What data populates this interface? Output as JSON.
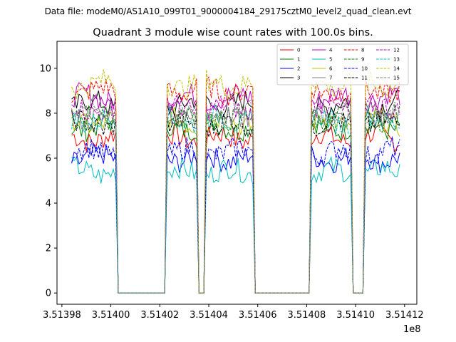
{
  "chart_data": {
    "type": "line",
    "suptitle": "Data file: modeM0/AS1A10_099T01_9000004184_29175cztM0_level2_quad_clean.evt",
    "title": "Quadrant 3 module wise count rates with 100.0s bins.",
    "xlabel": "",
    "ylabel": "",
    "x_offset_label": "1e8",
    "xlim": [
      3.513978,
      3.514125
    ],
    "ylim": [
      -0.5,
      11.2
    ],
    "x_ticks": [
      3.51398,
      3.514,
      3.51402,
      3.51404,
      3.51406,
      3.51408,
      3.5141,
      3.51412
    ],
    "x_tick_labels": [
      "3.51398",
      "3.51400",
      "3.51402",
      "3.51404",
      "3.51406",
      "3.51408",
      "3.51410",
      "3.51412"
    ],
    "y_ticks": [
      0,
      2,
      4,
      6,
      8,
      10
    ],
    "y_tick_labels": [
      "0",
      "2",
      "4",
      "6",
      "8",
      "10"
    ],
    "segments": [
      {
        "start": 3.513984,
        "end": 3.514002
      },
      {
        "start": 3.514023,
        "end": 3.514035
      },
      {
        "start": 3.514039,
        "end": 3.514058
      },
      {
        "start": 3.514082,
        "end": 3.514098
      },
      {
        "start": 3.514104,
        "end": 3.514118
      }
    ],
    "legend": {
      "loc": "upper right",
      "ncol": 4
    },
    "series": [
      {
        "name": "0",
        "color": "#ff0000",
        "dashed": false,
        "level": 6.9
      },
      {
        "name": "1",
        "color": "#008000",
        "dashed": false,
        "level": 7.4
      },
      {
        "name": "2",
        "color": "#0000ff",
        "dashed": false,
        "level": 6.0
      },
      {
        "name": "3",
        "color": "#000000",
        "dashed": false,
        "level": 8.4
      },
      {
        "name": "4",
        "color": "#bf00bf",
        "dashed": false,
        "level": 8.7
      },
      {
        "name": "5",
        "color": "#00bfbf",
        "dashed": false,
        "level": 5.4
      },
      {
        "name": "6",
        "color": "#bfbf00",
        "dashed": false,
        "level": 7.6
      },
      {
        "name": "7",
        "color": "#808080",
        "dashed": false,
        "level": 7.9
      },
      {
        "name": "8",
        "color": "#ff0000",
        "dashed": true,
        "level": 9.0
      },
      {
        "name": "9",
        "color": "#008000",
        "dashed": true,
        "level": 7.8
      },
      {
        "name": "10",
        "color": "#0000ff",
        "dashed": true,
        "level": 6.3
      },
      {
        "name": "11",
        "color": "#000000",
        "dashed": true,
        "level": 7.5
      },
      {
        "name": "12",
        "color": "#bf00bf",
        "dashed": true,
        "level": 8.2
      },
      {
        "name": "13",
        "color": "#00bfbf",
        "dashed": true,
        "level": 7.7
      },
      {
        "name": "14",
        "color": "#bfbf00",
        "dashed": true,
        "level": 9.3
      },
      {
        "name": "15",
        "color": "#808080",
        "dashed": true,
        "level": 8.0
      }
    ]
  }
}
